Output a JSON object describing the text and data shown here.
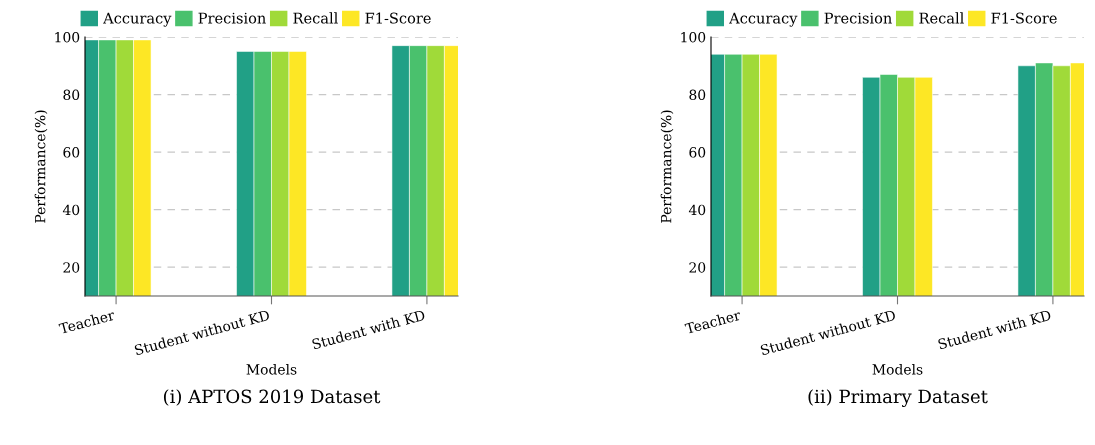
{
  "chart_data": [
    {
      "type": "bar",
      "title": "(i) APTOS 2019 Dataset",
      "xlabel": "Models",
      "ylabel": "Performance(%)",
      "categories": [
        "Teacher",
        "Student without KD",
        "Student with KD"
      ],
      "ylim": [
        10,
        100
      ],
      "yticks": [
        20,
        40,
        60,
        80,
        100
      ],
      "grid": "y",
      "legend": "top",
      "series": [
        {
          "name": "Accuracy",
          "color": "#21a086",
          "values": [
            99,
            95,
            97
          ]
        },
        {
          "name": "Precision",
          "color": "#4ac16d",
          "values": [
            99,
            95,
            97
          ]
        },
        {
          "name": "Recall",
          "color": "#a0da39",
          "values": [
            99,
            95,
            97
          ]
        },
        {
          "name": "F1-Score",
          "color": "#fde725",
          "values": [
            99,
            95,
            97
          ]
        }
      ]
    },
    {
      "type": "bar",
      "title": "(ii) Primary Dataset",
      "xlabel": "Models",
      "ylabel": "Performance(%)",
      "categories": [
        "Teacher",
        "Student without KD",
        "Student with KD"
      ],
      "ylim": [
        10,
        100
      ],
      "yticks": [
        20,
        40,
        60,
        80,
        100
      ],
      "grid": "y",
      "legend": "top",
      "series": [
        {
          "name": "Accuracy",
          "color": "#21a086",
          "values": [
            94,
            86,
            90
          ]
        },
        {
          "name": "Precision",
          "color": "#4ac16d",
          "values": [
            94,
            87,
            91
          ]
        },
        {
          "name": "Recall",
          "color": "#a0da39",
          "values": [
            94,
            86,
            90
          ]
        },
        {
          "name": "F1-Score",
          "color": "#fde725",
          "values": [
            94,
            86,
            91
          ]
        }
      ]
    }
  ]
}
